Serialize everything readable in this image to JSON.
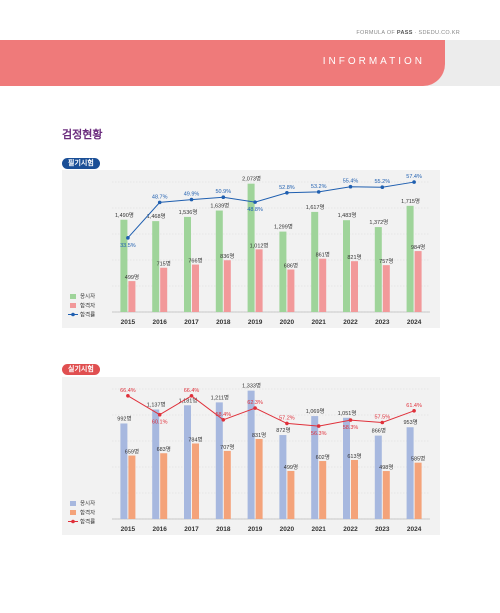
{
  "header": {
    "formula_prefix": "FORMULA OF ",
    "formula_brand": "PASS",
    "formula_suffix": " · SDEDU.CO.KR",
    "band_text": "INFORMATION"
  },
  "page_title": "검정현황",
  "colors": {
    "header_band": "#ef7a7a",
    "title": "#6b2c7e",
    "written_tag": "#1a4e96",
    "practical_tag": "#e04f50",
    "written_applicants": "#9fd49a",
    "written_passers": "#f2999a",
    "written_rate": "#1f5fb0",
    "practical_applicants": "#a7b8df",
    "practical_passers": "#f4a37a",
    "practical_rate": "#e0303a"
  },
  "chart_data": [
    {
      "type": "bar",
      "section_label": "필기시험",
      "categories": [
        "2015",
        "2016",
        "2017",
        "2018",
        "2019",
        "2020",
        "2021",
        "2022",
        "2023",
        "2024"
      ],
      "series": [
        {
          "name": "응시자",
          "values": [
            1490,
            1468,
            1536,
            1639,
            2073,
            1299,
            1617,
            1483,
            1372,
            1715
          ],
          "labels": [
            "1,490명",
            "1,468명",
            "1,536명",
            "1,639명",
            "2,073명",
            "1,299명",
            "1,617명",
            "1,483명",
            "1,372명",
            "1,715명"
          ]
        },
        {
          "name": "합격자",
          "values": [
            499,
            715,
            766,
            836,
            1012,
            686,
            861,
            821,
            757,
            984
          ],
          "labels": [
            "499명",
            "715명",
            "766명",
            "836명",
            "1,012명",
            "686명",
            "861명",
            "821명",
            "757명",
            "984명"
          ]
        },
        {
          "name": "합격률",
          "kind": "line",
          "values": [
            33.5,
            48.7,
            49.9,
            50.9,
            48.8,
            52.8,
            53.2,
            55.4,
            55.2,
            57.4
          ],
          "labels": [
            "33.5%",
            "48.7%",
            "49.9%",
            "50.9%",
            "48.8%",
            "52.8%",
            "53.2%",
            "55.4%",
            "55.2%",
            "57.4%"
          ]
        }
      ],
      "legend": [
        "응시자",
        "합격자",
        "합격률"
      ],
      "legend_position": "bottom-left",
      "grid": true
    },
    {
      "type": "bar",
      "section_label": "실기시험",
      "categories": [
        "2015",
        "2016",
        "2017",
        "2018",
        "2019",
        "2020",
        "2021",
        "2022",
        "2023",
        "2024"
      ],
      "series": [
        {
          "name": "응시자",
          "values": [
            992,
            1137,
            1181,
            1211,
            1333,
            872,
            1069,
            1051,
            866,
            953
          ],
          "labels": [
            "992명",
            "1,137명",
            "1,181명",
            "1,211명",
            "1,333명",
            "872명",
            "1,069명",
            "1,051명",
            "866명",
            "953명"
          ]
        },
        {
          "name": "합격자",
          "values": [
            659,
            683,
            784,
            707,
            831,
            499,
            602,
            613,
            498,
            585
          ],
          "labels": [
            "659명",
            "683명",
            "784명",
            "707명",
            "831명",
            "499명",
            "602명",
            "613명",
            "498명",
            "585명"
          ]
        },
        {
          "name": "합격률",
          "kind": "line",
          "values": [
            66.4,
            60.1,
            66.4,
            58.4,
            62.3,
            57.2,
            56.3,
            58.3,
            57.5,
            61.4
          ],
          "labels": [
            "66.4%",
            "60.1%",
            "66.4%",
            "58.4%",
            "62.3%",
            "57.2%",
            "56.3%",
            "58.3%",
            "57.5%",
            "61.4%"
          ]
        }
      ],
      "legend": [
        "응시자",
        "합격자",
        "합격률"
      ],
      "legend_position": "bottom-left",
      "grid": true
    }
  ]
}
